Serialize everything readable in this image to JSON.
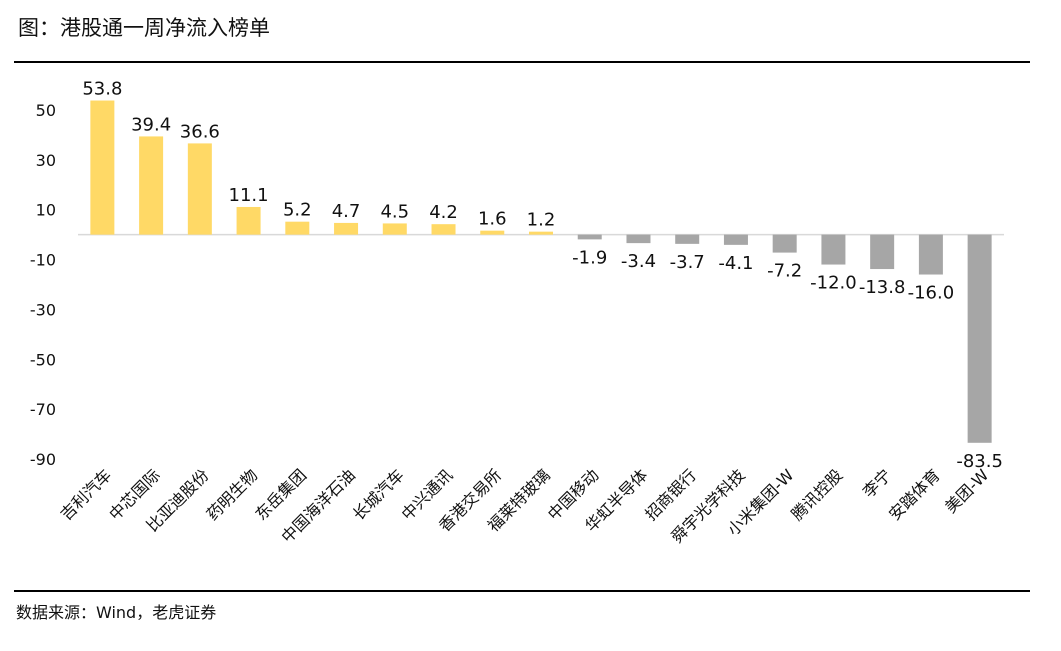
{
  "header": {
    "title": "图：港股通一周净流入榜单"
  },
  "footer": {
    "source": "数据来源：Wind，老虎证券"
  },
  "colors": {
    "positive": "#FFD966",
    "negative": "#A6A6A6",
    "zero_line": "#D9D9D9"
  },
  "chart_data": {
    "type": "bar",
    "title": "",
    "xlabel": "",
    "ylabel": "",
    "ylim": [
      -90,
      50
    ],
    "yticks": [
      50,
      30,
      10,
      -10,
      -30,
      -50,
      -70,
      -90
    ],
    "grid": false,
    "legend": "none",
    "categories": [
      "吉利汽车",
      "中芯国际",
      "比亚迪股份",
      "药明生物",
      "东岳集团",
      "中国海洋石油",
      "长城汽车",
      "中兴通讯",
      "香港交易所",
      "福莱特玻璃",
      "中国移动",
      "华虹半导体",
      "招商银行",
      "舜宇光学科技",
      "小米集团-W",
      "腾讯控股",
      "李宁",
      "安踏体育",
      "美团-W"
    ],
    "values": [
      53.8,
      39.4,
      36.6,
      11.1,
      5.2,
      4.7,
      4.5,
      4.2,
      1.6,
      1.2,
      -1.9,
      -3.4,
      -3.7,
      -4.1,
      -7.2,
      -12.0,
      -13.8,
      -16.0,
      -83.5
    ],
    "value_labels": [
      "53.8",
      "39.4",
      "36.6",
      "11.1",
      "5.2",
      "4.7",
      "4.5",
      "4.2",
      "1.6",
      "1.2",
      "-1.9",
      "-3.4",
      "-3.7",
      "-4.1",
      "-7.2",
      "-12.0",
      "-13.8",
      "-16.0",
      "-83.5"
    ]
  }
}
